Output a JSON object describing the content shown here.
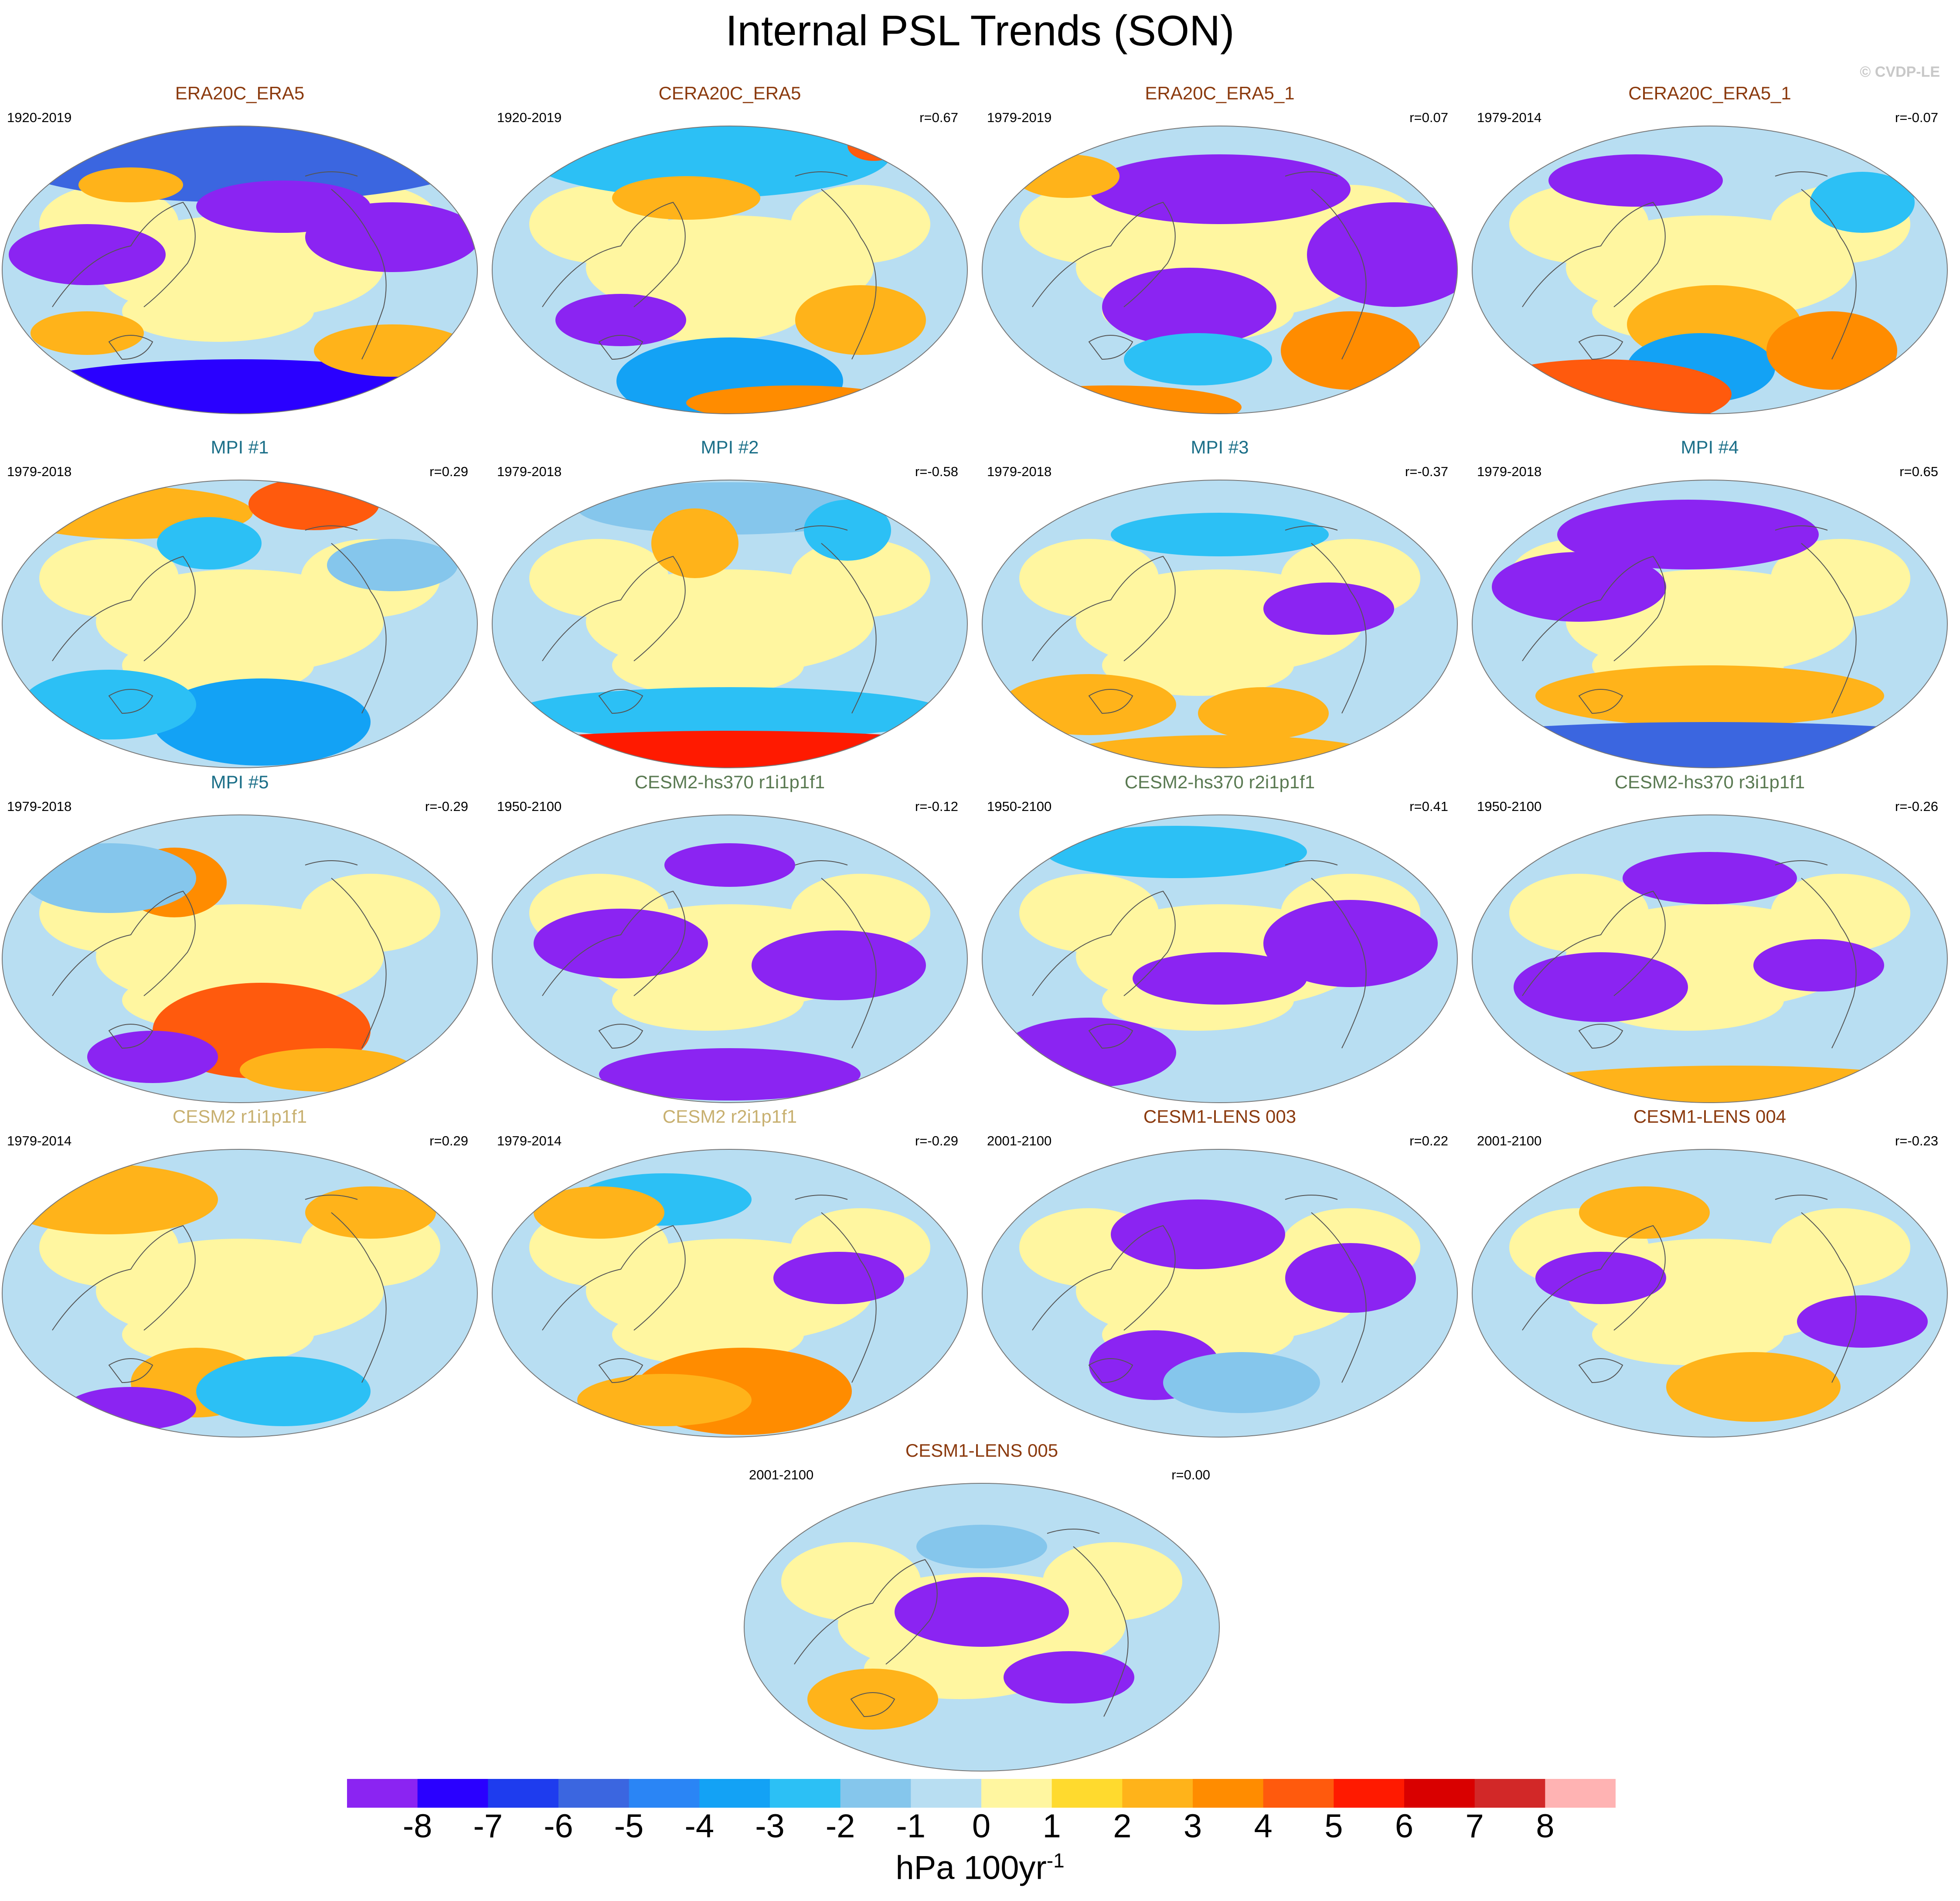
{
  "title": "Internal PSL Trends (SON)",
  "copyright": "© CVDP-LE",
  "colorbar": {
    "ticks": [
      "-8",
      "-7",
      "-6",
      "-5",
      "-4",
      "-3",
      "-2",
      "-1",
      "0",
      "1",
      "2",
      "3",
      "4",
      "5",
      "6",
      "7",
      "8"
    ],
    "colors": [
      "#8b24f2",
      "#2a00ff",
      "#1e3cee",
      "#3b66e0",
      "#2a85f5",
      "#13a2f5",
      "#2cc0f5",
      "#85c6ec",
      "#b8def2",
      "#fff6a0",
      "#ffda2e",
      "#ffb31a",
      "#ff8c00",
      "#ff5a0d",
      "#ff1a00",
      "#d90000",
      "#d22828",
      "#ffb3b3"
    ],
    "unit_text": "hPa 100yr",
    "unit_sup": "-1"
  },
  "panels": [
    {
      "title": "ERA20C_ERA5",
      "years": "1920-2019",
      "r": "",
      "title_color": "#8b3a0e"
    },
    {
      "title": "CERA20C_ERA5",
      "years": "1920-2019",
      "r": "r=0.67",
      "title_color": "#8b3a0e"
    },
    {
      "title": "ERA20C_ERA5_1",
      "years": "1979-2019",
      "r": "r=0.07",
      "title_color": "#8b3a0e"
    },
    {
      "title": "CERA20C_ERA5_1",
      "years": "1979-2014",
      "r": "r=-0.07",
      "title_color": "#8b3a0e"
    },
    {
      "title": "MPI #1",
      "years": "1979-2018",
      "r": "r=0.29",
      "title_color": "#1b6f88"
    },
    {
      "title": "MPI #2",
      "years": "1979-2018",
      "r": "r=-0.58",
      "title_color": "#1b6f88"
    },
    {
      "title": "MPI #3",
      "years": "1979-2018",
      "r": "r=-0.37",
      "title_color": "#1b6f88"
    },
    {
      "title": "MPI #4",
      "years": "1979-2018",
      "r": "r=0.65",
      "title_color": "#1b6f88"
    },
    {
      "title": "MPI #5",
      "years": "1979-2018",
      "r": "r=-0.29",
      "title_color": "#1b6f88"
    },
    {
      "title": "CESM2-hs370 r1i1p1f1",
      "years": "1950-2100",
      "r": "r=-0.12",
      "title_color": "#5a7a52"
    },
    {
      "title": "CESM2-hs370 r2i1p1f1",
      "years": "1950-2100",
      "r": "r=0.41",
      "title_color": "#5a7a52"
    },
    {
      "title": "CESM2-hs370 r3i1p1f1",
      "years": "1950-2100",
      "r": "r=-0.26",
      "title_color": "#5a7a52"
    },
    {
      "title": "CESM2 r1i1p1f1",
      "years": "1979-2014",
      "r": "r=0.29",
      "title_color": "#c8b070"
    },
    {
      "title": "CESM2 r2i1p1f1",
      "years": "1979-2014",
      "r": "r=-0.29",
      "title_color": "#c8b070"
    },
    {
      "title": "CESM1-LENS 003",
      "years": "2001-2100",
      "r": "r=0.22",
      "title_color": "#8b3a0e"
    },
    {
      "title": "CESM1-LENS 004",
      "years": "2001-2100",
      "r": "r=-0.23",
      "title_color": "#8b3a0e"
    },
    {
      "title": "CESM1-LENS 005",
      "years": "2001-2100",
      "r": "r=0.00",
      "title_color": "#8b3a0e"
    }
  ]
}
